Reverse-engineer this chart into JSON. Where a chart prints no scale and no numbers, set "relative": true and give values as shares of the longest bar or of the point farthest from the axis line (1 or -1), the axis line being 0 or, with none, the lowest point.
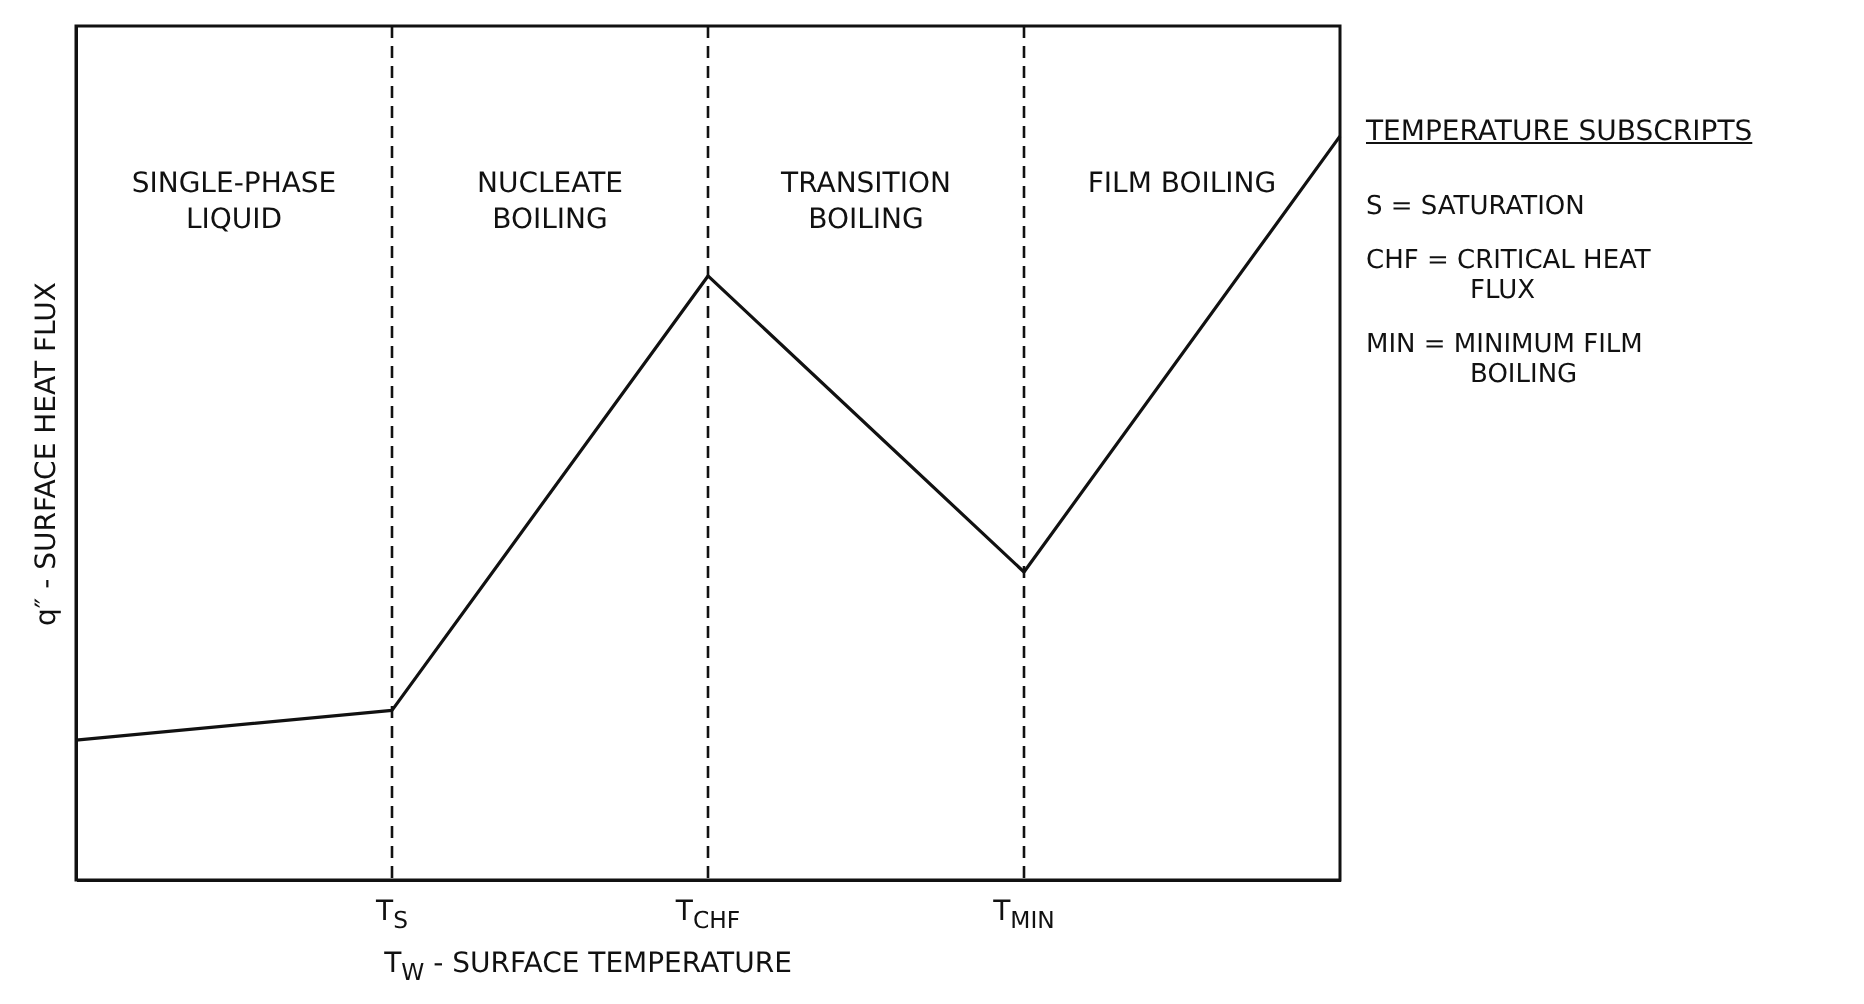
{
  "chart_data": {
    "type": "line",
    "relative": true,
    "xlabel": "T$_{W}$ - SURFACE TEMPERATURE",
    "ylabel": "q″ - SURFACE HEAT FLUX",
    "categories": [
      null,
      "T$_{S}$",
      "T$_{CHF}$",
      "T$_{MIN}$",
      null
    ],
    "series": [
      {
        "color": "#111111",
        "values": [
          0.188,
          0.228,
          0.812,
          0.414,
          1
        ]
      }
    ],
    "ref_lines": [
      {
        "axis": "x",
        "value": "T$_{S}$",
        "line_style": "dashed"
      },
      {
        "axis": "x",
        "value": "T$_{CHF}$",
        "line_style": "dashed"
      },
      {
        "axis": "x",
        "value": "T$_{MIN}$",
        "line_style": "dashed"
      }
    ],
    "annotations": [
      "SINGLE-PHASE\nLIQUID",
      "NUCLEATE\nBOILING",
      "TRANSITION\nBOILING",
      "FILM BOILING",
      "TEMPERATURE SUBSCRIPTS",
      "S = SATURATION",
      "CHF = CRITICAL HEAT FLUX",
      "MIN = MINIMUM FILM BOILING"
    ],
    "marker": "none",
    "line_style": "solid",
    "grid": false
  }
}
